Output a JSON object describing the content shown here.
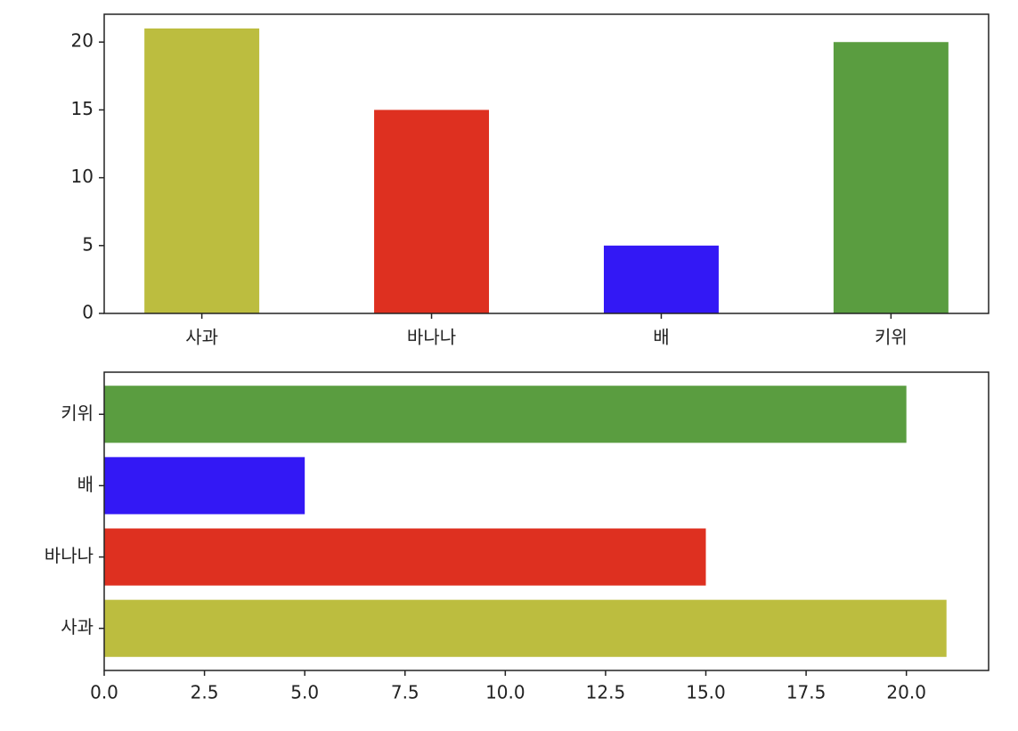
{
  "chart_data": [
    {
      "type": "bar",
      "categories": [
        "사과",
        "바나나",
        "배",
        "키위"
      ],
      "values": [
        21,
        15,
        5,
        20
      ],
      "colors": [
        "#bcbd3f",
        "#de3020",
        "#3318f5",
        "#5a9d40"
      ],
      "ylim": [
        0,
        22.05
      ],
      "yticks": [
        0,
        5,
        10,
        15,
        20
      ]
    },
    {
      "type": "barh",
      "categories": [
        "사과",
        "바나나",
        "배",
        "키위"
      ],
      "values": [
        21,
        15,
        5,
        20
      ],
      "colors": [
        "#bcbd3f",
        "#de3020",
        "#3318f5",
        "#5a9d40"
      ],
      "xlim": [
        0,
        22.05
      ],
      "xticks": [
        {
          "value": 0,
          "label": "0.0"
        },
        {
          "value": 2.5,
          "label": "2.5"
        },
        {
          "value": 5,
          "label": "5.0"
        },
        {
          "value": 7.5,
          "label": "7.5"
        },
        {
          "value": 10,
          "label": "10.0"
        },
        {
          "value": 12.5,
          "label": "12.5"
        },
        {
          "value": 15,
          "label": "15.0"
        },
        {
          "value": 17.5,
          "label": "17.5"
        },
        {
          "value": 20,
          "label": "20.0"
        }
      ]
    }
  ]
}
